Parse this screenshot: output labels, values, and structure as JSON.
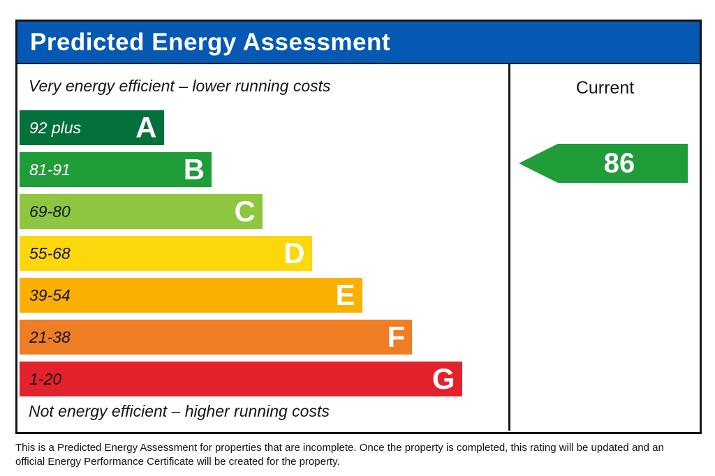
{
  "page": {
    "title": "Predicted Energy Assessment",
    "footer_line1": "This is a Predicted Energy Assessment for properties that are incomplete. Once the property is completed, this rating will be updated and an",
    "footer_line2": "official Energy Performance Certificate will be created for the property."
  },
  "chart_data": {
    "type": "bar",
    "title": "Predicted Energy Assessment",
    "top_caption": "Very energy efficient – lower running costs",
    "bottom_caption": "Not energy efficient – higher running costs",
    "column_header": "Current",
    "current_rating": "86",
    "current_band": "B",
    "legend_position": "right",
    "bands": [
      {
        "letter": "A",
        "range": "92 plus",
        "color": "#04703a",
        "text_color": "#ffffff",
        "width_pct": 29.5
      },
      {
        "letter": "B",
        "range": "81-91",
        "color": "#1f9d38",
        "text_color": "#ffffff",
        "width_pct": 39.3
      },
      {
        "letter": "C",
        "range": "69-80",
        "color": "#8ec63f",
        "text_color": "#151515",
        "width_pct": 49.7
      },
      {
        "letter": "D",
        "range": "55-68",
        "color": "#fcd70c",
        "text_color": "#151515",
        "width_pct": 59.8
      },
      {
        "letter": "E",
        "range": "39-54",
        "color": "#fbaf00",
        "text_color": "#151515",
        "width_pct": 70.1
      },
      {
        "letter": "F",
        "range": "21-38",
        "color": "#ef7d24",
        "text_color": "#151515",
        "width_pct": 80.3
      },
      {
        "letter": "G",
        "range": "1-20",
        "color": "#e4222c",
        "text_color": "#151515",
        "width_pct": 90.5
      }
    ],
    "colors": {
      "header_blue": "#0659b2",
      "arrow_green": "#1f9d38",
      "border_black": "#151515"
    }
  }
}
